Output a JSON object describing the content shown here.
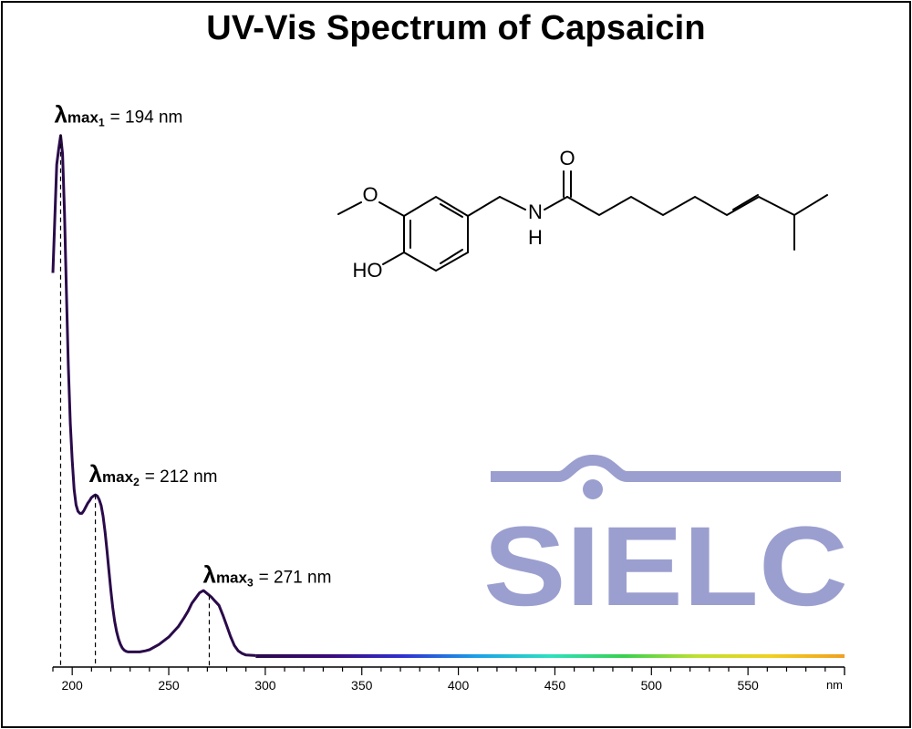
{
  "title": "UV-Vis Spectrum of Capsaicin",
  "logo_text": "SIELC",
  "molecule": {
    "atom_labels": [
      "O",
      "N",
      "H",
      "O",
      "HO"
    ]
  },
  "chart_data": {
    "type": "line",
    "title": "UV-Vis Spectrum of Capsaicin",
    "xlabel": "",
    "ylabel": "",
    "x_unit": "nm",
    "xlim": [
      190,
      600
    ],
    "ylim": [
      0,
      1.0
    ],
    "x_ticks": [
      200,
      250,
      300,
      350,
      400,
      450,
      500,
      550
    ],
    "x_tick_labels": [
      "200",
      "250",
      "300",
      "350",
      "400",
      "450",
      "500",
      "550"
    ],
    "x_axis_unit_label": "nm",
    "grid": false,
    "series": [
      {
        "name": "",
        "x": [
          190,
          192,
          193,
          194,
          195,
          196,
          197,
          198,
          199,
          200,
          201,
          202,
          203,
          204,
          205,
          206,
          207,
          208,
          209,
          210,
          211,
          212,
          213,
          214,
          215,
          216,
          217,
          218,
          219,
          220,
          221,
          222,
          223,
          224,
          225,
          226,
          227,
          228,
          229,
          230,
          232,
          235,
          238,
          240,
          245,
          250,
          255,
          258,
          260,
          262,
          264,
          266,
          268,
          270,
          271,
          272,
          274,
          276,
          278,
          280,
          282,
          284,
          286,
          288,
          290,
          295,
          300,
          350,
          400,
          450,
          500,
          550,
          600
        ],
        "y": [
          0.725,
          0.93,
          0.96,
          0.985,
          0.95,
          0.84,
          0.69,
          0.55,
          0.44,
          0.37,
          0.315,
          0.286,
          0.274,
          0.27,
          0.27,
          0.275,
          0.282,
          0.289,
          0.294,
          0.3,
          0.303,
          0.305,
          0.303,
          0.296,
          0.285,
          0.265,
          0.235,
          0.2,
          0.162,
          0.125,
          0.092,
          0.066,
          0.046,
          0.032,
          0.022,
          0.015,
          0.011,
          0.009,
          0.008,
          0.008,
          0.008,
          0.008,
          0.01,
          0.012,
          0.022,
          0.036,
          0.056,
          0.073,
          0.085,
          0.1,
          0.11,
          0.12,
          0.124,
          0.118,
          0.115,
          0.112,
          0.104,
          0.096,
          0.078,
          0.058,
          0.037,
          0.02,
          0.01,
          0.005,
          0.002,
          0.001,
          0.0,
          0.0,
          0.0,
          0.0,
          0.0,
          0.0,
          0.0
        ]
      }
    ],
    "annotations": [
      {
        "label_main": "λ",
        "label_sub": "max",
        "label_index": "1",
        "value_text": "= 194 nm",
        "x": 194
      },
      {
        "label_main": "λ",
        "label_sub": "max",
        "label_index": "2",
        "value_text": "= 212 nm",
        "x": 212
      },
      {
        "label_main": "λ",
        "label_sub": "max",
        "label_index": "3",
        "value_text": "= 271 nm",
        "x": 271
      }
    ],
    "colors": {
      "line": "#2a0a4a",
      "gradient_stops": [
        "#2a0a4a",
        "#3a0a7a",
        "#3030d0",
        "#1aa0e8",
        "#2ee0c0",
        "#38d050",
        "#c0e030",
        "#f0d020",
        "#f0a020"
      ],
      "logo": "#9b9fcf"
    }
  }
}
